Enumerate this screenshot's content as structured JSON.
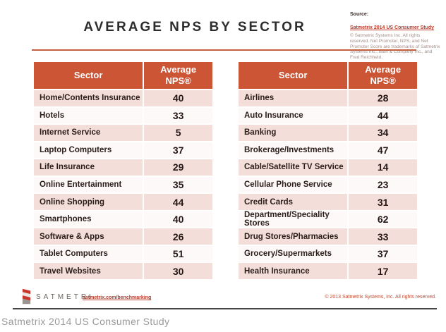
{
  "title": "AVERAGE NPS BY SECTOR",
  "source_box": {
    "label": "Source:",
    "link": "Satmetrix 2014 US Consumer Study",
    "fine_print": "© Satmetrix Systems Inc. All rights reserved. Net Promoter, NPS, and Net Promoter Score are trademarks of Satmetrix Systems Inc., Bain & Company Inc., and Fred Reichheld."
  },
  "chart_data": {
    "type": "table",
    "title": "AVERAGE NPS BY SECTOR",
    "columns": [
      "Sector",
      "Average NPS®"
    ],
    "tables": [
      {
        "position": "left",
        "rows": [
          [
            "Home/Contents Insurance",
            40
          ],
          [
            "Hotels",
            33
          ],
          [
            "Internet Service",
            5
          ],
          [
            "Laptop Computers",
            37
          ],
          [
            "Life Insurance",
            29
          ],
          [
            "Online Entertainment",
            35
          ],
          [
            "Online Shopping",
            44
          ],
          [
            "Smartphones",
            40
          ],
          [
            "Software & Apps",
            26
          ],
          [
            "Tablet Computers",
            51
          ],
          [
            "Travel Websites",
            30
          ]
        ]
      },
      {
        "position": "right",
        "rows": [
          [
            "Airlines",
            28
          ],
          [
            "Auto Insurance",
            44
          ],
          [
            "Banking",
            34
          ],
          [
            "Brokerage/Investments",
            47
          ],
          [
            "Cable/Satellite TV Service",
            14
          ],
          [
            "Cellular Phone Service",
            23
          ],
          [
            "Credit Cards",
            31
          ],
          [
            "Department/Speciality Stores",
            62
          ],
          [
            "Drug Stores/Pharmacies",
            33
          ],
          [
            "Grocery/Supermarkets",
            37
          ],
          [
            "Health Insurance",
            17
          ]
        ]
      }
    ],
    "layout": {
      "grid": false,
      "legend": "none"
    }
  },
  "footer": {
    "brand": "SATMETRI",
    "link": "satmetrix.com/benchmarking",
    "copyright": "© 2013 Satmetrix Systems, Inc. All rights reserved."
  },
  "caption": "Satmetrix 2014 US Consumer Study",
  "colors": {
    "header_bg": "#cc5536",
    "row_stripe_pink": "#f3ded9",
    "row_stripe_white": "#fdf9f8",
    "title_rule": "#c2603f",
    "link_red": "#b33a2a",
    "caption_gray": "#9a9a9a"
  }
}
